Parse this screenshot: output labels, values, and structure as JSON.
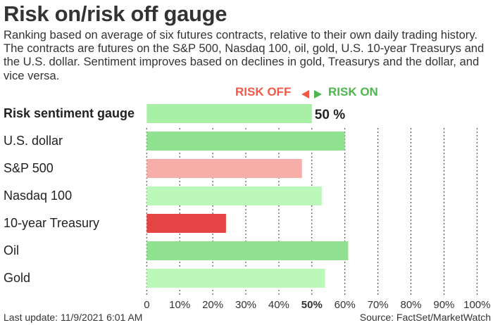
{
  "title": "Risk on/risk off gauge",
  "description": "Ranking based on average of six futures contracts, relative to their own daily trading history. The contracts are futures on the S&P 500, Nasdaq 100, oil, gold, U.S. 10-year Treasurys and the U.S. dollar. Sentiment improves based on declines in gold, Treasurys and the dollar, and vice versa.",
  "legend": {
    "risk_off": "RISK OFF",
    "risk_on": "RISK ON",
    "risk_off_color": "#f05a46",
    "risk_on_color": "#4cb84c"
  },
  "footer": {
    "last_update": "Last update: 11/9/2021 6:01 AM",
    "source": "Source: FactSet/MarketWatch"
  },
  "chart_data": {
    "type": "bar",
    "orientation": "horizontal",
    "categories": [
      "Risk sentiment gauge",
      "U.S. dollar",
      "S&P 500",
      "Nasdaq 100",
      "10-year Treasury",
      "Oil",
      "Gold"
    ],
    "values": [
      50,
      60,
      47,
      53,
      24,
      61,
      54
    ],
    "colors": [
      "#a8f0a6",
      "#90e290",
      "#f7ada8",
      "#bdf8bb",
      "#e54444",
      "#90e290",
      "#bdf8bb"
    ],
    "value_label": "50 %",
    "xlim": [
      0,
      100
    ],
    "xticks": [
      "0",
      "10%",
      "20%",
      "30%",
      "40%",
      "50%",
      "60%",
      "70%",
      "80%",
      "90%",
      "100%"
    ],
    "grid": "vertical dotted"
  }
}
